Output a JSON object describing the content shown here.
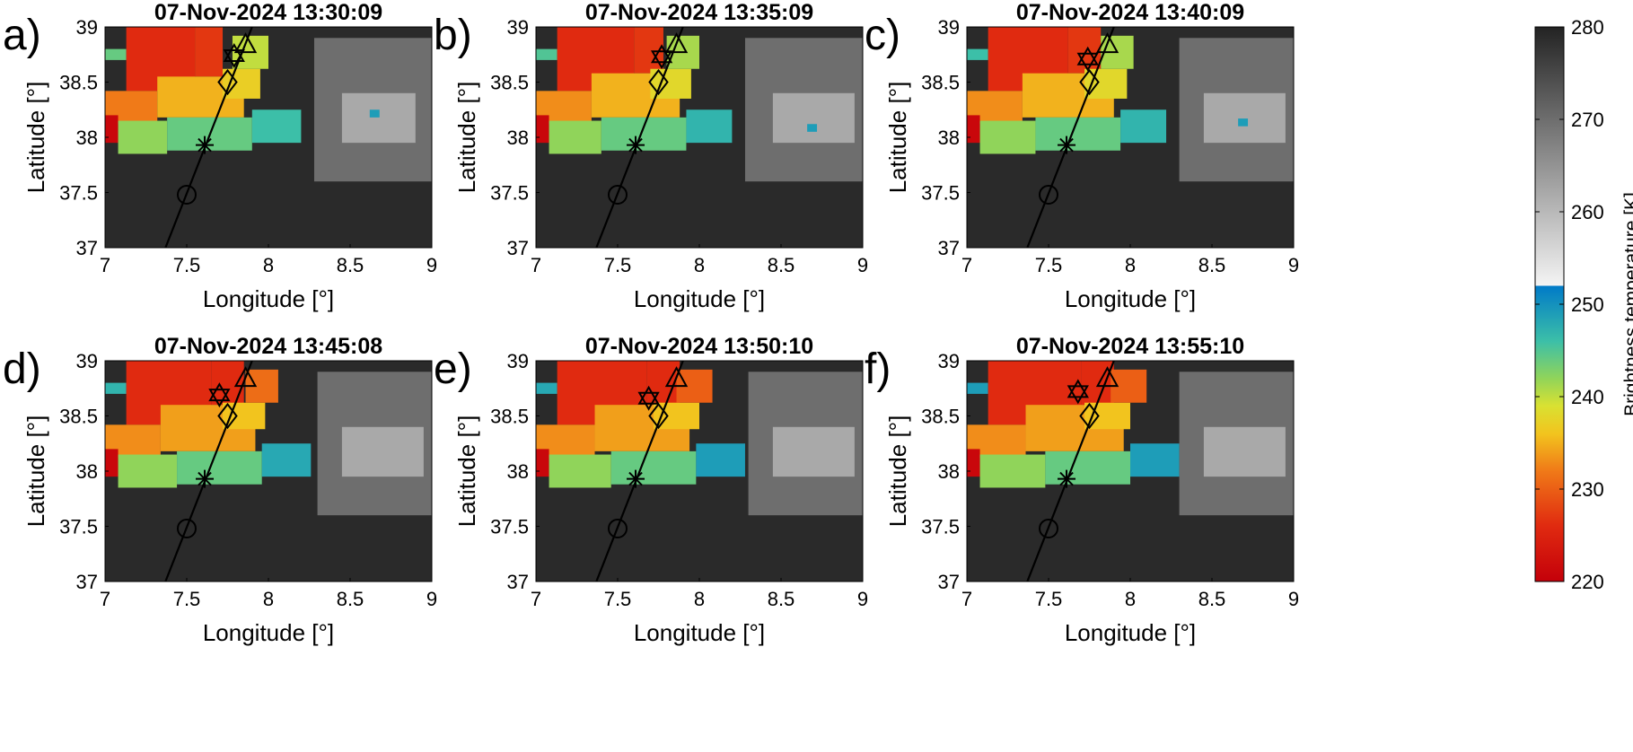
{
  "chart_data": {
    "type": "heatmap",
    "description_units": "Brightness temperature (K) on a lon/lat grid; pixels shown as colormapped cells",
    "colorbar": {
      "label": "Brightness temperature [K]",
      "range": [
        220,
        280
      ],
      "ticks": [
        220,
        230,
        240,
        250,
        260,
        270,
        280
      ],
      "tick_labels": [
        "220",
        "230",
        "240",
        "250",
        "260",
        "270",
        "280"
      ],
      "color_stops": [
        {
          "value": 220,
          "color": "#c4000a"
        },
        {
          "value": 226,
          "color": "#e02a10"
        },
        {
          "value": 232,
          "color": "#f07a18"
        },
        {
          "value": 236,
          "color": "#f2c41e"
        },
        {
          "value": 239,
          "color": "#d9e132"
        },
        {
          "value": 242,
          "color": "#90d45a"
        },
        {
          "value": 246,
          "color": "#3cbfa8"
        },
        {
          "value": 252,
          "color": "#007ac8"
        },
        {
          "value": 252.01,
          "color": "#f4f4f4"
        },
        {
          "value": 280,
          "color": "#232323"
        }
      ]
    },
    "x_axis": {
      "label": "Longitude [°]",
      "range": [
        7,
        9
      ],
      "ticks": [
        7,
        7.5,
        8,
        8.5,
        9
      ],
      "tick_labels": [
        "7",
        "7.5",
        "8",
        "8.5",
        "9"
      ]
    },
    "y_axis": {
      "label": "Latitude [°]",
      "range": [
        37,
        39
      ],
      "ticks": [
        37,
        37.5,
        38,
        38.5,
        39
      ],
      "tick_labels": [
        "37",
        "37.5",
        "38",
        "38.5",
        "39"
      ]
    },
    "track_line": {
      "start": [
        7.37,
        37.0
      ],
      "end": [
        7.9,
        39.0
      ],
      "color": "#000000"
    },
    "markers": [
      {
        "symbol": "circle",
        "lon": 7.5,
        "lat": 37.48
      },
      {
        "symbol": "asterisk",
        "lon": 7.61,
        "lat": 37.93
      },
      {
        "symbol": "diamond",
        "lon": 7.75,
        "lat": 38.5
      },
      {
        "symbol": "triangle",
        "lon": 7.86,
        "lat": 38.82
      }
    ],
    "panels": [
      {
        "letter": "a)",
        "title": "07-Nov-2024 13:30:09",
        "star": {
          "lon": 7.79,
          "lat": 38.74
        },
        "cells": [
          {
            "lon": [
              7.0,
              7.13
            ],
            "lat": [
              38.7,
              38.8
            ],
            "bt": 244
          },
          {
            "lon": [
              7.13,
              7.55
            ],
            "lat": [
              38.42,
              39.0
            ],
            "bt": 226
          },
          {
            "lon": [
              7.55,
              7.72
            ],
            "lat": [
              38.55,
              39.0
            ],
            "bt": 227
          },
          {
            "lon": [
              7.0,
              7.32
            ],
            "lat": [
              38.12,
              38.42
            ],
            "bt": 232
          },
          {
            "lon": [
              7.32,
              7.85
            ],
            "lat": [
              38.18,
              38.55
            ],
            "bt": 235
          },
          {
            "lon": [
              7.72,
              7.95
            ],
            "lat": [
              38.35,
              38.62
            ],
            "bt": 237
          },
          {
            "lon": [
              7.0,
              7.08
            ],
            "lat": [
              37.95,
              38.2
            ],
            "bt": 221
          },
          {
            "lon": [
              7.08,
              7.38
            ],
            "lat": [
              37.85,
              38.15
            ],
            "bt": 242
          },
          {
            "lon": [
              7.38,
              7.9
            ],
            "lat": [
              37.88,
              38.18
            ],
            "bt": 244
          },
          {
            "lon": [
              7.9,
              8.2
            ],
            "lat": [
              37.95,
              38.25
            ],
            "bt": 246
          },
          {
            "lon": [
              7.78,
              8.0
            ],
            "lat": [
              38.62,
              38.92
            ],
            "bt": 240
          },
          {
            "lon": [
              8.28,
              9.0
            ],
            "lat": [
              37.6,
              38.9
            ],
            "bt": 270
          },
          {
            "lon": [
              8.45,
              8.9
            ],
            "lat": [
              37.95,
              38.4
            ],
            "bt": 262
          },
          {
            "lon": [
              8.62,
              8.68
            ],
            "lat": [
              38.18,
              38.25
            ],
            "bt": 249
          }
        ]
      },
      {
        "letter": "b)",
        "title": "07-Nov-2024 13:35:09",
        "star": {
          "lon": 7.77,
          "lat": 38.73
        },
        "cells": [
          {
            "lon": [
              7.0,
              7.13
            ],
            "lat": [
              38.7,
              38.8
            ],
            "bt": 245
          },
          {
            "lon": [
              7.13,
              7.6
            ],
            "lat": [
              38.42,
              39.0
            ],
            "bt": 226
          },
          {
            "lon": [
              7.6,
              7.78
            ],
            "lat": [
              38.58,
              39.0
            ],
            "bt": 227
          },
          {
            "lon": [
              7.0,
              7.34
            ],
            "lat": [
              38.12,
              38.42
            ],
            "bt": 233
          },
          {
            "lon": [
              7.34,
              7.88
            ],
            "lat": [
              38.18,
              38.58
            ],
            "bt": 235
          },
          {
            "lon": [
              7.7,
              7.95
            ],
            "lat": [
              38.35,
              38.62
            ],
            "bt": 238
          },
          {
            "lon": [
              7.0,
              7.08
            ],
            "lat": [
              37.95,
              38.2
            ],
            "bt": 221
          },
          {
            "lon": [
              7.08,
              7.4
            ],
            "lat": [
              37.85,
              38.15
            ],
            "bt": 242
          },
          {
            "lon": [
              7.4,
              7.92
            ],
            "lat": [
              37.88,
              38.18
            ],
            "bt": 244
          },
          {
            "lon": [
              7.92,
              8.2
            ],
            "lat": [
              37.95,
              38.25
            ],
            "bt": 247
          },
          {
            "lon": [
              7.8,
              8.0
            ],
            "lat": [
              38.62,
              38.92
            ],
            "bt": 241
          },
          {
            "lon": [
              8.28,
              9.0
            ],
            "lat": [
              37.6,
              38.9
            ],
            "bt": 270
          },
          {
            "lon": [
              8.45,
              8.95
            ],
            "lat": [
              37.95,
              38.4
            ],
            "bt": 262
          },
          {
            "lon": [
              8.66,
              8.72
            ],
            "lat": [
              38.05,
              38.12
            ],
            "bt": 249
          }
        ]
      },
      {
        "letter": "c)",
        "title": "07-Nov-2024 13:40:09",
        "star": {
          "lon": 7.74,
          "lat": 38.71
        },
        "cells": [
          {
            "lon": [
              7.0,
              7.13
            ],
            "lat": [
              38.7,
              38.8
            ],
            "bt": 246
          },
          {
            "lon": [
              7.13,
              7.62
            ],
            "lat": [
              38.42,
              39.0
            ],
            "bt": 226
          },
          {
            "lon": [
              7.62,
              7.82
            ],
            "lat": [
              38.58,
              39.0
            ],
            "bt": 227
          },
          {
            "lon": [
              7.0,
              7.34
            ],
            "lat": [
              38.12,
              38.42
            ],
            "bt": 233
          },
          {
            "lon": [
              7.34,
              7.9
            ],
            "lat": [
              38.18,
              38.58
            ],
            "bt": 235
          },
          {
            "lon": [
              7.72,
              7.98
            ],
            "lat": [
              38.35,
              38.62
            ],
            "bt": 238
          },
          {
            "lon": [
              7.0,
              7.08
            ],
            "lat": [
              37.95,
              38.2
            ],
            "bt": 221
          },
          {
            "lon": [
              7.08,
              7.42
            ],
            "lat": [
              37.85,
              38.15
            ],
            "bt": 242
          },
          {
            "lon": [
              7.42,
              7.94
            ],
            "lat": [
              37.88,
              38.18
            ],
            "bt": 244
          },
          {
            "lon": [
              7.94,
              8.22
            ],
            "lat": [
              37.95,
              38.25
            ],
            "bt": 247
          },
          {
            "lon": [
              7.82,
              8.02
            ],
            "lat": [
              38.62,
              38.92
            ],
            "bt": 241
          },
          {
            "lon": [
              8.3,
              9.0
            ],
            "lat": [
              37.6,
              38.9
            ],
            "bt": 270
          },
          {
            "lon": [
              8.45,
              8.95
            ],
            "lat": [
              37.95,
              38.4
            ],
            "bt": 262
          },
          {
            "lon": [
              8.66,
              8.72
            ],
            "lat": [
              38.1,
              38.17
            ],
            "bt": 249
          }
        ]
      },
      {
        "letter": "d)",
        "title": "07-Nov-2024 13:45:08",
        "star": {
          "lon": 7.7,
          "lat": 38.69
        },
        "cells": [
          {
            "lon": [
              7.0,
              7.13
            ],
            "lat": [
              38.7,
              38.8
            ],
            "bt": 247
          },
          {
            "lon": [
              7.13,
              7.65
            ],
            "lat": [
              38.42,
              39.0
            ],
            "bt": 226
          },
          {
            "lon": [
              7.65,
              7.85
            ],
            "lat": [
              38.6,
              39.0
            ],
            "bt": 226
          },
          {
            "lon": [
              7.0,
              7.34
            ],
            "lat": [
              38.12,
              38.42
            ],
            "bt": 233
          },
          {
            "lon": [
              7.34,
              7.92
            ],
            "lat": [
              38.18,
              38.6
            ],
            "bt": 234
          },
          {
            "lon": [
              7.72,
              7.98
            ],
            "lat": [
              38.38,
              38.62
            ],
            "bt": 236
          },
          {
            "lon": [
              7.0,
              7.08
            ],
            "lat": [
              37.95,
              38.2
            ],
            "bt": 221
          },
          {
            "lon": [
              7.08,
              7.44
            ],
            "lat": [
              37.85,
              38.15
            ],
            "bt": 242
          },
          {
            "lon": [
              7.44,
              7.96
            ],
            "lat": [
              37.88,
              38.18
            ],
            "bt": 244
          },
          {
            "lon": [
              7.96,
              8.26
            ],
            "lat": [
              37.95,
              38.25
            ],
            "bt": 248
          },
          {
            "lon": [
              7.86,
              8.06
            ],
            "lat": [
              38.62,
              38.92
            ],
            "bt": 231
          },
          {
            "lon": [
              8.3,
              9.0
            ],
            "lat": [
              37.6,
              38.9
            ],
            "bt": 270
          },
          {
            "lon": [
              8.45,
              8.95
            ],
            "lat": [
              37.95,
              38.4
            ],
            "bt": 262
          }
        ]
      },
      {
        "letter": "e)",
        "title": "07-Nov-2024 13:50:10",
        "star": {
          "lon": 7.69,
          "lat": 38.66
        },
        "cells": [
          {
            "lon": [
              7.0,
              7.13
            ],
            "lat": [
              38.7,
              38.8
            ],
            "bt": 248
          },
          {
            "lon": [
              7.13,
              7.68
            ],
            "lat": [
              38.42,
              39.0
            ],
            "bt": 226
          },
          {
            "lon": [
              7.68,
              7.88
            ],
            "lat": [
              38.6,
              39.0
            ],
            "bt": 226
          },
          {
            "lon": [
              7.0,
              7.36
            ],
            "lat": [
              38.12,
              38.42
            ],
            "bt": 233
          },
          {
            "lon": [
              7.36,
              7.94
            ],
            "lat": [
              38.18,
              38.6
            ],
            "bt": 234
          },
          {
            "lon": [
              7.72,
              8.0
            ],
            "lat": [
              38.38,
              38.62
            ],
            "bt": 236
          },
          {
            "lon": [
              7.0,
              7.08
            ],
            "lat": [
              37.95,
              38.2
            ],
            "bt": 221
          },
          {
            "lon": [
              7.08,
              7.46
            ],
            "lat": [
              37.85,
              38.15
            ],
            "bt": 242
          },
          {
            "lon": [
              7.46,
              7.98
            ],
            "lat": [
              37.88,
              38.18
            ],
            "bt": 244
          },
          {
            "lon": [
              7.98,
              8.28
            ],
            "lat": [
              37.95,
              38.25
            ],
            "bt": 249
          },
          {
            "lon": [
              7.86,
              8.08
            ],
            "lat": [
              38.62,
              38.92
            ],
            "bt": 230
          },
          {
            "lon": [
              8.3,
              9.0
            ],
            "lat": [
              37.6,
              38.9
            ],
            "bt": 270
          },
          {
            "lon": [
              8.45,
              8.95
            ],
            "lat": [
              37.95,
              38.4
            ],
            "bt": 262
          }
        ]
      },
      {
        "letter": "f)",
        "title": "07-Nov-2024 13:55:10",
        "star": {
          "lon": 7.68,
          "lat": 38.72
        },
        "cells": [
          {
            "lon": [
              7.0,
              7.13
            ],
            "lat": [
              38.7,
              38.8
            ],
            "bt": 249
          },
          {
            "lon": [
              7.13,
              7.7
            ],
            "lat": [
              38.42,
              39.0
            ],
            "bt": 226
          },
          {
            "lon": [
              7.7,
              7.9
            ],
            "lat": [
              38.6,
              39.0
            ],
            "bt": 226
          },
          {
            "lon": [
              7.0,
              7.36
            ],
            "lat": [
              38.12,
              38.42
            ],
            "bt": 233
          },
          {
            "lon": [
              7.36,
              7.96
            ],
            "lat": [
              38.18,
              38.6
            ],
            "bt": 234
          },
          {
            "lon": [
              7.72,
              8.0
            ],
            "lat": [
              38.38,
              38.62
            ],
            "bt": 236
          },
          {
            "lon": [
              7.0,
              7.08
            ],
            "lat": [
              37.95,
              38.2
            ],
            "bt": 221
          },
          {
            "lon": [
              7.08,
              7.48
            ],
            "lat": [
              37.85,
              38.15
            ],
            "bt": 242
          },
          {
            "lon": [
              7.48,
              8.0
            ],
            "lat": [
              37.88,
              38.18
            ],
            "bt": 244
          },
          {
            "lon": [
              8.0,
              8.3
            ],
            "lat": [
              37.95,
              38.25
            ],
            "bt": 249
          },
          {
            "lon": [
              7.88,
              8.1
            ],
            "lat": [
              38.62,
              38.92
            ],
            "bt": 230
          },
          {
            "lon": [
              8.3,
              9.0
            ],
            "lat": [
              37.6,
              38.9
            ],
            "bt": 270
          },
          {
            "lon": [
              8.45,
              8.95
            ],
            "lat": [
              37.95,
              38.4
            ],
            "bt": 262
          }
        ]
      }
    ]
  }
}
